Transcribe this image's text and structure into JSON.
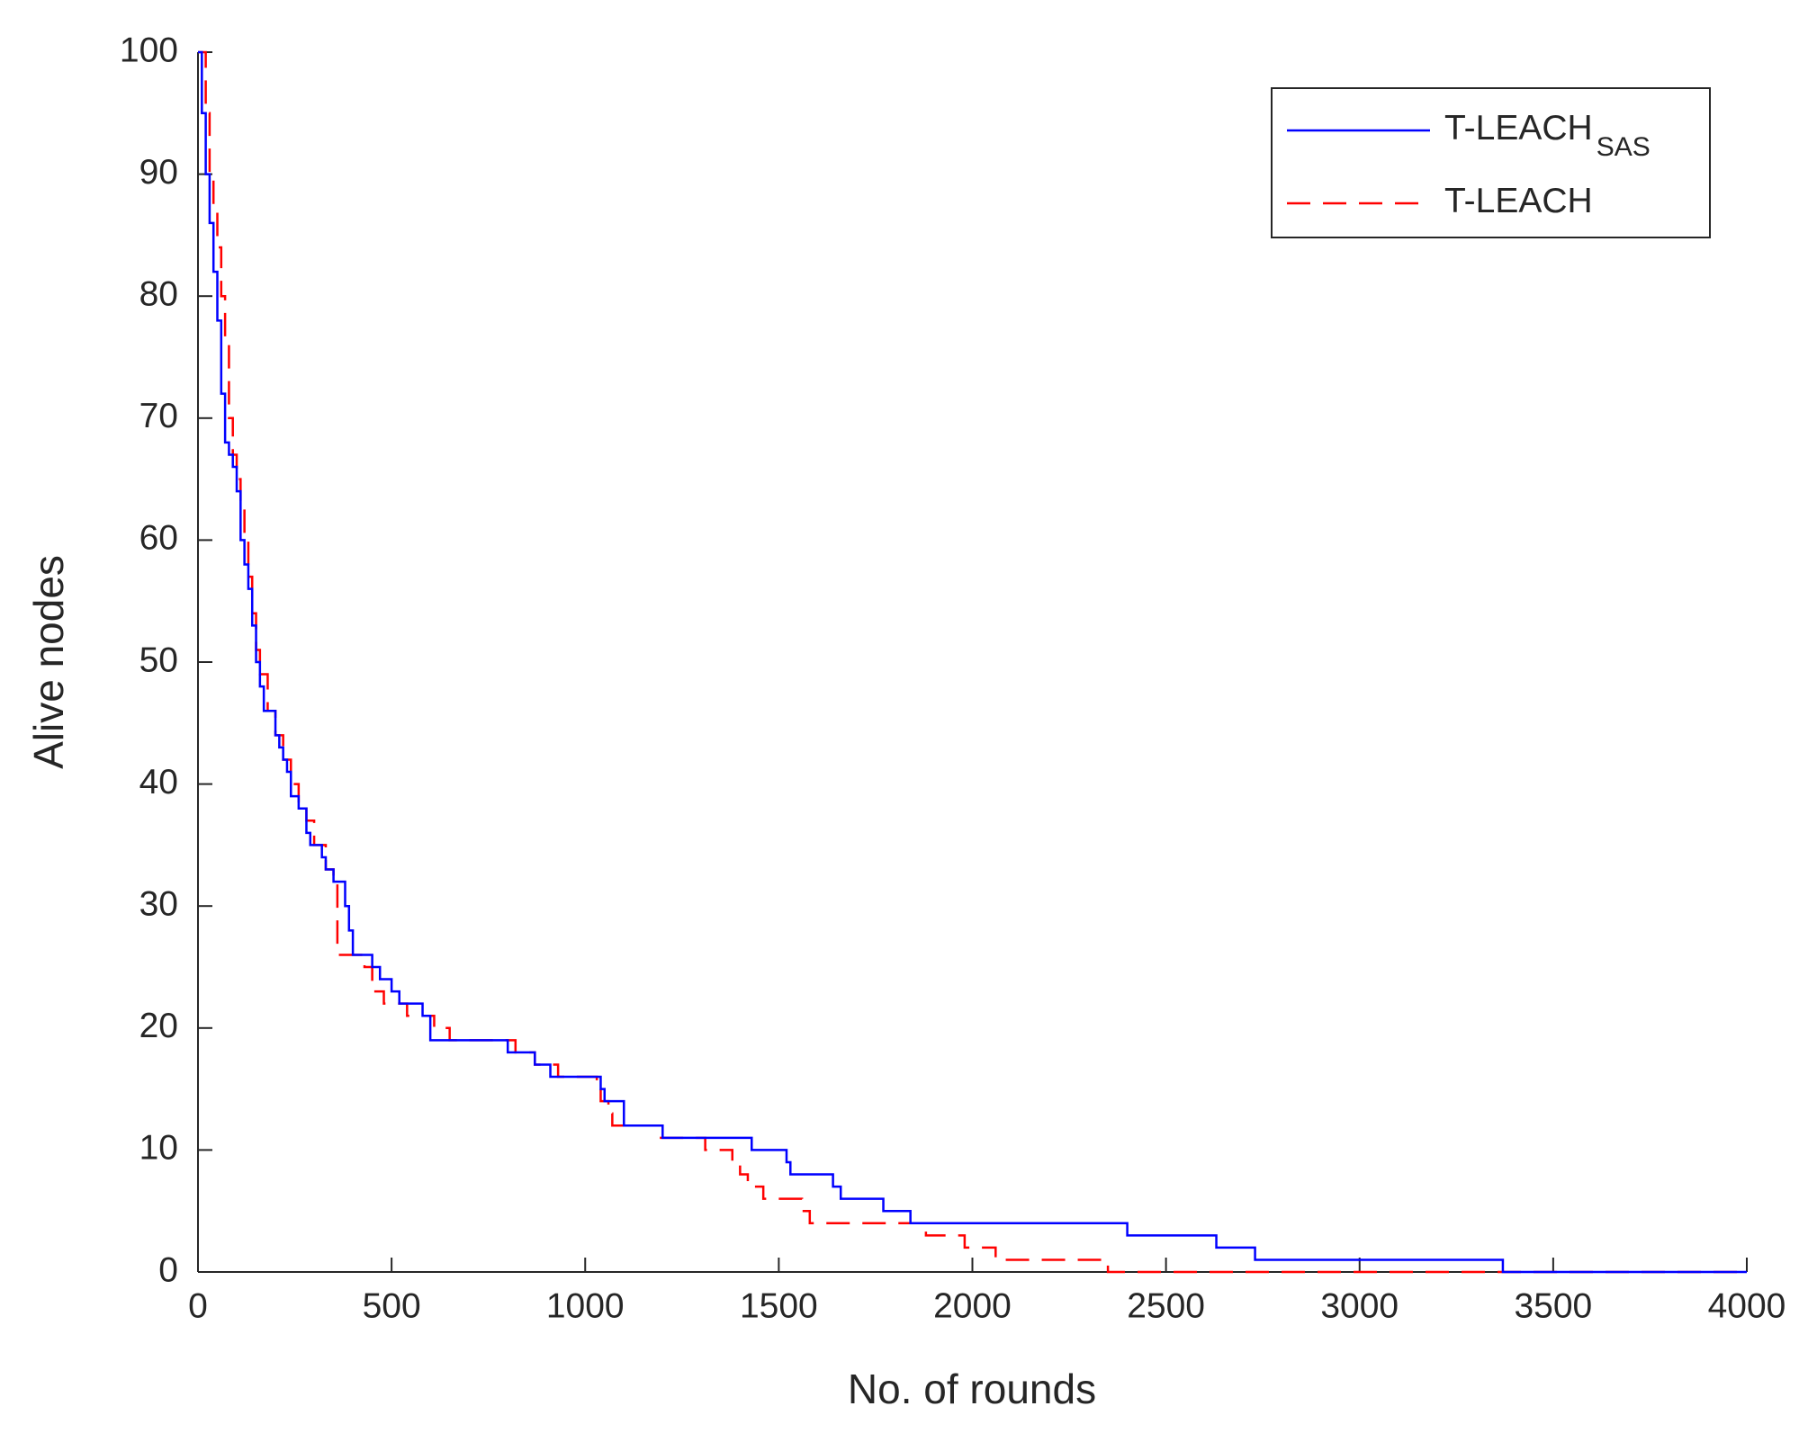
{
  "chart_data": {
    "type": "line",
    "drawstyle": "steps-post",
    "xlabel": "No. of rounds",
    "ylabel": "Alive nodes",
    "xlim": [
      0,
      4000
    ],
    "xticks": [
      0,
      500,
      1000,
      1500,
      2000,
      2500,
      3000,
      3500,
      4000
    ],
    "ylim": [
      0,
      100
    ],
    "yticks": [
      0,
      10,
      20,
      30,
      40,
      50,
      60,
      70,
      80,
      90,
      100
    ],
    "legend": "upper right",
    "series": [
      {
        "name": "T-LEACH",
        "subscript": "SAS",
        "color": "#0000ff",
        "dash": "solid",
        "x": [
          0,
          10,
          20,
          30,
          40,
          50,
          60,
          70,
          80,
          90,
          100,
          110,
          120,
          130,
          140,
          150,
          160,
          170,
          200,
          210,
          220,
          230,
          240,
          260,
          280,
          290,
          320,
          330,
          350,
          380,
          390,
          400,
          450,
          470,
          500,
          520,
          580,
          600,
          800,
          870,
          910,
          1040,
          1050,
          1060,
          1100,
          1200,
          1430,
          1520,
          1530,
          1640,
          1660,
          1770,
          1840,
          2400,
          2630,
          2730,
          3370,
          4000
        ],
        "values": [
          100,
          95,
          90,
          86,
          82,
          78,
          72,
          68,
          67,
          66,
          64,
          60,
          58,
          56,
          53,
          50,
          48,
          46,
          44,
          43,
          42,
          41,
          39,
          38,
          36,
          35,
          34,
          33,
          32,
          30,
          28,
          26,
          25,
          24,
          23,
          22,
          21,
          19,
          18,
          17,
          16,
          15,
          14,
          14,
          12,
          11,
          10,
          9,
          8,
          7,
          6,
          5,
          4,
          3,
          2,
          1,
          0,
          0
        ]
      },
      {
        "name": "T-LEACH",
        "color": "#ff0000",
        "dash": "dashed",
        "x": [
          0,
          20,
          30,
          40,
          50,
          60,
          70,
          80,
          90,
          100,
          110,
          120,
          130,
          140,
          150,
          160,
          180,
          200,
          220,
          240,
          260,
          280,
          300,
          330,
          350,
          360,
          400,
          430,
          450,
          480,
          540,
          610,
          650,
          820,
          870,
          930,
          1030,
          1040,
          1060,
          1070,
          1190,
          1310,
          1380,
          1400,
          1420,
          1460,
          1560,
          1580,
          1880,
          1980,
          2000,
          2060,
          2350,
          4000
        ],
        "values": [
          100,
          95,
          90,
          87,
          84,
          80,
          76,
          70,
          67,
          65,
          63,
          60,
          57,
          54,
          51,
          49,
          46,
          44,
          42,
          40,
          38,
          37,
          35,
          33,
          32,
          26,
          26,
          25,
          23,
          22,
          21,
          20,
          19,
          18,
          17,
          16,
          15,
          14,
          13,
          12,
          11,
          10,
          9,
          8,
          7,
          6,
          5,
          4,
          3,
          2,
          2,
          1,
          0,
          0
        ]
      }
    ]
  }
}
